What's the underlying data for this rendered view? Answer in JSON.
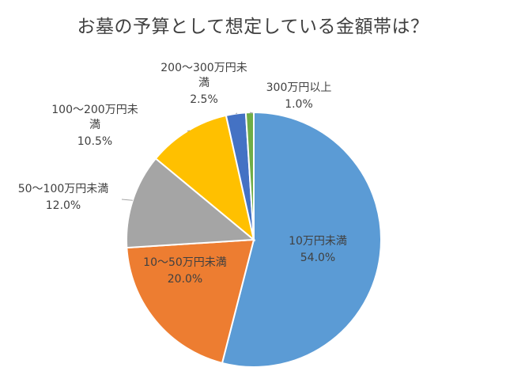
{
  "chart_data": {
    "type": "pie",
    "title": "お墓の予算として想定している金額帯は？",
    "slices": [
      {
        "name": "10万円未満",
        "value": 54.0,
        "label": "54.0%",
        "color": "#5b9bd5"
      },
      {
        "name": "10～50万円未満",
        "value": 20.0,
        "label": "20.0%",
        "color": "#ed7d31"
      },
      {
        "name": "50～100万円未満",
        "value": 12.0,
        "label": "12.0%",
        "color": "#a5a5a5"
      },
      {
        "name": "100～200万円未満",
        "value": 10.5,
        "label": "10.5%",
        "color": "#ffc000"
      },
      {
        "name": "200～300万円未満",
        "value": 2.5,
        "label": "2.5%",
        "color": "#4472c4"
      },
      {
        "name": "300万円以上",
        "value": 1.0,
        "label": "1.0%",
        "color": "#70ad47"
      }
    ]
  }
}
